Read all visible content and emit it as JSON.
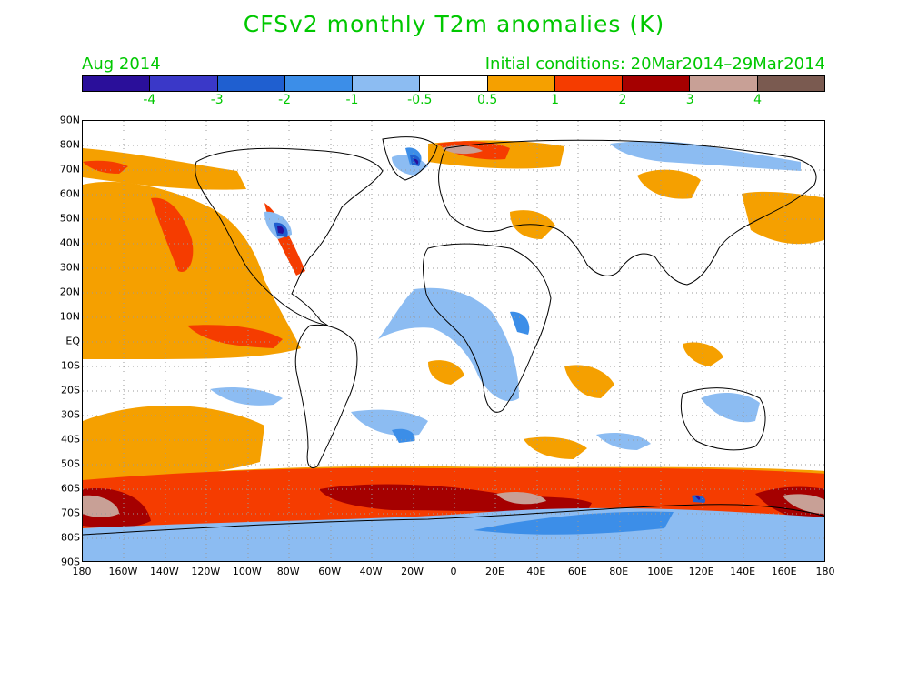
{
  "title": "CFSv2 monthly T2m anomalies (K)",
  "month_label": "Aug 2014",
  "initial_conditions": "Initial conditions: 20Mar2014–29Mar2014",
  "colorbar": {
    "colors": [
      "#2a0f9a",
      "#3a38c8",
      "#1f5fd0",
      "#3c8ee8",
      "#8cbcf2",
      "#ffffff",
      "#f5a000",
      "#f53c00",
      "#a50000",
      "#c8a096",
      "#7a5a50"
    ],
    "labels": [
      "-4",
      "-3",
      "-2",
      "-1",
      "-0.5",
      "0.5",
      "1",
      "2",
      "3",
      "4"
    ]
  },
  "axes": {
    "lat_labels": [
      "90N",
      "80N",
      "70N",
      "60N",
      "50N",
      "40N",
      "30N",
      "20N",
      "10N",
      "EQ",
      "10S",
      "20S",
      "30S",
      "40S",
      "50S",
      "60S",
      "70S",
      "80S",
      "90S"
    ],
    "lon_labels": [
      "180",
      "160W",
      "140W",
      "120W",
      "100W",
      "80W",
      "60W",
      "40W",
      "20W",
      "0",
      "20E",
      "40E",
      "60E",
      "80E",
      "100E",
      "120E",
      "140E",
      "160E",
      "180"
    ]
  }
}
